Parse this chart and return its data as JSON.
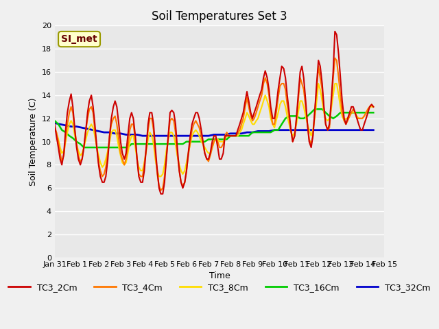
{
  "title": "Soil Temperatures Set 3",
  "xlabel": "Time",
  "ylabel": "Soil Temperature (C)",
  "ylim": [
    0,
    20
  ],
  "yticks": [
    0,
    2,
    4,
    6,
    8,
    10,
    12,
    14,
    16,
    18,
    20
  ],
  "xtick_labels": [
    "Jan 31",
    "Feb 1",
    "Feb 2",
    "Feb 3",
    "Feb 4",
    "Feb 5",
    "Feb 6",
    "Feb 7",
    "Feb 8",
    "Feb 9",
    "Feb 10",
    "Feb 11",
    "Feb 12",
    "Feb 13",
    "Feb 14",
    "Feb 15"
  ],
  "background_color": "#e8e8e8",
  "grid_color": "#ffffff",
  "annotation_text": "SI_met",
  "annotation_bg": "#ffffcc",
  "annotation_border": "#999900",
  "series": {
    "TC3_2Cm": {
      "color": "#cc0000",
      "lw": 1.5,
      "x": [
        0,
        0.08,
        0.17,
        0.25,
        0.33,
        0.42,
        0.5,
        0.58,
        0.67,
        0.75,
        0.83,
        0.92,
        1.0,
        1.08,
        1.17,
        1.25,
        1.33,
        1.42,
        1.5,
        1.58,
        1.67,
        1.75,
        1.83,
        1.92,
        2.0,
        2.08,
        2.17,
        2.25,
        2.33,
        2.42,
        2.5,
        2.58,
        2.67,
        2.75,
        2.83,
        2.92,
        3.0,
        3.08,
        3.17,
        3.25,
        3.33,
        3.42,
        3.5,
        3.58,
        3.67,
        3.75,
        3.83,
        3.92,
        4.0,
        4.08,
        4.17,
        4.25,
        4.33,
        4.42,
        4.5,
        4.58,
        4.67,
        4.75,
        4.83,
        4.92,
        5.0,
        5.08,
        5.17,
        5.25,
        5.33,
        5.42,
        5.5,
        5.58,
        5.67,
        5.75,
        5.83,
        5.92,
        6.0,
        6.08,
        6.17,
        6.25,
        6.33,
        6.42,
        6.5,
        6.58,
        6.67,
        6.75,
        6.83,
        6.92,
        7.0,
        7.08,
        7.17,
        7.25,
        7.33,
        7.42,
        7.5,
        7.58,
        7.67,
        7.75,
        7.83,
        7.92,
        8.0,
        8.08,
        8.17,
        8.25,
        8.33,
        8.42,
        8.5,
        8.58,
        8.67,
        8.75,
        8.83,
        8.92,
        9.0,
        9.08,
        9.17,
        9.25,
        9.33,
        9.42,
        9.5,
        9.58,
        9.67,
        9.75,
        9.83,
        9.92,
        10.0,
        10.08,
        10.17,
        10.25,
        10.33,
        10.42,
        10.5,
        10.58,
        10.67,
        10.75,
        10.83,
        10.92,
        11.0,
        11.08,
        11.17,
        11.25,
        11.33,
        11.42,
        11.5,
        11.58,
        11.67,
        11.75,
        11.83,
        11.92,
        12.0,
        12.08,
        12.17,
        12.25,
        12.33,
        12.42,
        12.5,
        12.58,
        12.67,
        12.75,
        12.83,
        12.92,
        13.0,
        13.08,
        13.17,
        13.25,
        13.33,
        13.42,
        13.5,
        13.58,
        13.67,
        13.75,
        13.83,
        13.92,
        14.0,
        14.08,
        14.17,
        14.25,
        14.33,
        14.42,
        14.5
      ],
      "y": [
        11.5,
        10.5,
        9.5,
        8.5,
        8.0,
        9.0,
        11.0,
        12.5,
        13.5,
        14.1,
        13.0,
        11.0,
        9.5,
        8.5,
        8.0,
        8.5,
        9.5,
        11.0,
        12.5,
        13.5,
        14.0,
        13.0,
        11.5,
        9.5,
        8.0,
        7.0,
        6.5,
        6.5,
        7.0,
        8.5,
        10.5,
        12.0,
        13.0,
        13.5,
        13.0,
        11.5,
        10.0,
        9.0,
        8.5,
        9.0,
        10.5,
        12.0,
        12.5,
        12.0,
        10.5,
        8.5,
        7.0,
        6.5,
        6.5,
        7.5,
        9.5,
        11.5,
        12.5,
        12.5,
        11.5,
        9.5,
        7.5,
        6.0,
        5.5,
        5.5,
        6.5,
        8.5,
        10.5,
        12.5,
        12.7,
        12.5,
        11.5,
        9.5,
        7.5,
        6.5,
        6.0,
        6.5,
        7.5,
        9.0,
        10.5,
        11.5,
        12.0,
        12.5,
        12.5,
        12.0,
        11.0,
        10.0,
        9.0,
        8.5,
        8.5,
        9.0,
        10.0,
        10.5,
        10.5,
        9.5,
        8.5,
        8.5,
        9.0,
        10.5,
        10.5,
        10.5,
        10.5,
        10.5,
        10.5,
        10.5,
        11.0,
        11.5,
        12.0,
        12.5,
        13.5,
        14.3,
        13.5,
        12.5,
        12.0,
        12.5,
        13.0,
        13.5,
        14.0,
        14.5,
        15.5,
        16.1,
        15.5,
        14.5,
        13.0,
        12.0,
        12.0,
        13.0,
        14.5,
        15.5,
        16.5,
        16.3,
        15.5,
        14.0,
        12.5,
        11.0,
        10.0,
        10.5,
        12.0,
        14.0,
        16.0,
        16.5,
        15.5,
        13.5,
        11.5,
        10.0,
        9.5,
        10.5,
        12.5,
        15.0,
        17.0,
        16.5,
        15.0,
        13.0,
        11.5,
        11.0,
        11.5,
        13.5,
        16.0,
        19.5,
        19.2,
        17.5,
        15.5,
        13.5,
        12.0,
        11.5,
        12.0,
        12.5,
        13.0,
        13.0,
        12.5,
        12.0,
        11.5,
        11.0,
        11.0,
        11.5,
        12.0,
        12.5,
        13.0,
        13.2,
        13.0
      ]
    },
    "TC3_4Cm": {
      "color": "#ff7700",
      "lw": 1.5,
      "x": [
        0,
        0.08,
        0.17,
        0.25,
        0.33,
        0.42,
        0.5,
        0.58,
        0.67,
        0.75,
        0.83,
        0.92,
        1.0,
        1.08,
        1.17,
        1.25,
        1.33,
        1.42,
        1.5,
        1.58,
        1.67,
        1.75,
        1.83,
        1.92,
        2.0,
        2.08,
        2.17,
        2.25,
        2.33,
        2.42,
        2.5,
        2.58,
        2.67,
        2.75,
        2.83,
        2.92,
        3.0,
        3.08,
        3.17,
        3.25,
        3.33,
        3.42,
        3.5,
        3.58,
        3.67,
        3.75,
        3.83,
        3.92,
        4.0,
        4.08,
        4.17,
        4.25,
        4.33,
        4.42,
        4.5,
        4.58,
        4.67,
        4.75,
        4.83,
        4.92,
        5.0,
        5.08,
        5.17,
        5.25,
        5.33,
        5.42,
        5.5,
        5.58,
        5.67,
        5.75,
        5.83,
        5.92,
        6.0,
        6.08,
        6.17,
        6.25,
        6.33,
        6.42,
        6.5,
        6.58,
        6.67,
        6.75,
        6.83,
        6.92,
        7.0,
        7.08,
        7.17,
        7.25,
        7.33,
        7.42,
        7.5,
        7.58,
        7.67,
        7.75,
        7.83,
        7.92,
        8.0,
        8.08,
        8.17,
        8.25,
        8.33,
        8.42,
        8.5,
        8.58,
        8.67,
        8.75,
        8.83,
        8.92,
        9.0,
        9.08,
        9.17,
        9.25,
        9.33,
        9.42,
        9.5,
        9.58,
        9.67,
        9.75,
        9.83,
        9.92,
        10.0,
        10.08,
        10.17,
        10.25,
        10.33,
        10.42,
        10.5,
        10.58,
        10.67,
        10.75,
        10.83,
        10.92,
        11.0,
        11.08,
        11.17,
        11.25,
        11.33,
        11.42,
        11.5,
        11.58,
        11.67,
        11.75,
        11.83,
        11.92,
        12.0,
        12.08,
        12.17,
        12.25,
        12.33,
        12.42,
        12.5,
        12.58,
        12.67,
        12.75,
        12.83,
        12.92,
        13.0,
        13.08,
        13.17,
        13.25,
        13.33,
        13.42,
        13.5,
        13.58,
        13.67,
        13.75,
        13.83,
        13.92,
        14.0,
        14.08,
        14.17,
        14.25,
        14.33,
        14.42,
        14.5
      ],
      "y": [
        11.3,
        10.8,
        10.0,
        9.0,
        8.3,
        8.8,
        10.3,
        11.5,
        12.5,
        13.0,
        12.5,
        11.0,
        9.8,
        8.8,
        8.3,
        8.5,
        9.5,
        11.0,
        12.0,
        12.8,
        13.0,
        12.5,
        11.0,
        9.5,
        8.2,
        7.5,
        7.0,
        7.2,
        7.8,
        9.0,
        10.5,
        11.5,
        12.0,
        12.2,
        11.5,
        10.2,
        9.0,
        8.5,
        8.0,
        8.5,
        9.5,
        11.0,
        11.5,
        11.5,
        10.2,
        8.5,
        7.2,
        7.0,
        7.0,
        8.0,
        9.5,
        11.0,
        12.0,
        12.0,
        11.0,
        9.0,
        7.2,
        6.2,
        5.8,
        6.0,
        7.0,
        8.5,
        10.5,
        11.8,
        12.0,
        11.8,
        10.8,
        9.0,
        7.5,
        6.5,
        6.2,
        6.5,
        7.5,
        8.8,
        10.0,
        11.0,
        11.5,
        11.8,
        11.5,
        11.2,
        10.5,
        9.8,
        9.0,
        8.5,
        8.3,
        8.8,
        9.5,
        10.0,
        10.3,
        10.0,
        9.5,
        9.5,
        9.8,
        10.5,
        10.8,
        10.5,
        10.5,
        10.5,
        10.5,
        10.5,
        10.8,
        11.0,
        11.5,
        12.0,
        13.0,
        13.8,
        13.0,
        12.2,
        11.8,
        12.0,
        12.5,
        13.0,
        13.5,
        14.0,
        15.0,
        15.5,
        15.0,
        14.0,
        12.5,
        11.5,
        11.5,
        12.5,
        13.8,
        14.8,
        15.0,
        15.0,
        14.5,
        13.2,
        12.0,
        11.0,
        10.0,
        10.5,
        12.0,
        13.5,
        15.5,
        15.0,
        14.5,
        13.0,
        11.5,
        10.2,
        9.8,
        10.5,
        12.5,
        14.5,
        16.5,
        15.5,
        14.5,
        12.8,
        11.5,
        11.0,
        11.2,
        13.0,
        15.5,
        17.2,
        17.0,
        15.5,
        14.0,
        12.5,
        11.8,
        11.5,
        11.8,
        12.2,
        12.5,
        12.8,
        12.5,
        12.0,
        12.0,
        12.0,
        12.0,
        12.2,
        12.5,
        12.8,
        13.0,
        13.2,
        13.0
      ]
    },
    "TC3_8Cm": {
      "color": "#ffdd00",
      "lw": 1.5,
      "x": [
        0,
        0.08,
        0.17,
        0.25,
        0.33,
        0.42,
        0.5,
        0.58,
        0.67,
        0.75,
        0.83,
        0.92,
        1.0,
        1.08,
        1.17,
        1.25,
        1.33,
        1.42,
        1.5,
        1.58,
        1.67,
        1.75,
        1.83,
        1.92,
        2.0,
        2.08,
        2.17,
        2.25,
        2.33,
        2.42,
        2.5,
        2.58,
        2.67,
        2.75,
        2.83,
        2.92,
        3.0,
        3.08,
        3.17,
        3.25,
        3.33,
        3.42,
        3.5,
        3.58,
        3.67,
        3.75,
        3.83,
        3.92,
        4.0,
        4.08,
        4.17,
        4.25,
        4.33,
        4.42,
        4.5,
        4.58,
        4.67,
        4.75,
        4.83,
        4.92,
        5.0,
        5.08,
        5.17,
        5.25,
        5.33,
        5.42,
        5.5,
        5.58,
        5.67,
        5.75,
        5.83,
        5.92,
        6.0,
        6.08,
        6.17,
        6.25,
        6.33,
        6.42,
        6.5,
        6.58,
        6.67,
        6.75,
        6.83,
        6.92,
        7.0,
        7.08,
        7.17,
        7.25,
        7.33,
        7.42,
        7.5,
        7.58,
        7.67,
        7.75,
        7.83,
        7.92,
        8.0,
        8.08,
        8.17,
        8.25,
        8.33,
        8.42,
        8.5,
        8.58,
        8.67,
        8.75,
        8.83,
        8.92,
        9.0,
        9.08,
        9.17,
        9.25,
        9.33,
        9.42,
        9.5,
        9.58,
        9.67,
        9.75,
        9.83,
        9.92,
        10.0,
        10.08,
        10.17,
        10.25,
        10.33,
        10.42,
        10.5,
        10.58,
        10.67,
        10.75,
        10.83,
        10.92,
        11.0,
        11.08,
        11.17,
        11.25,
        11.33,
        11.42,
        11.5,
        11.58,
        11.67,
        11.75,
        11.83,
        11.92,
        12.0,
        12.08,
        12.17,
        12.25,
        12.33,
        12.42,
        12.5,
        12.58,
        12.67,
        12.75,
        12.83,
        12.92,
        13.0,
        13.08,
        13.17,
        13.25,
        13.33,
        13.42,
        13.5,
        13.58,
        13.67,
        13.75,
        13.83,
        13.92,
        14.0,
        14.08,
        14.17,
        14.25,
        14.33,
        14.42,
        14.5
      ],
      "y": [
        11.0,
        10.8,
        10.2,
        9.5,
        9.0,
        9.2,
        10.0,
        10.8,
        11.5,
        11.8,
        11.5,
        10.5,
        9.8,
        9.2,
        8.8,
        9.0,
        9.5,
        10.2,
        10.8,
        11.2,
        11.5,
        11.2,
        10.5,
        9.5,
        8.8,
        8.2,
        7.8,
        8.0,
        8.5,
        9.2,
        10.0,
        10.8,
        11.0,
        11.0,
        10.5,
        9.5,
        8.8,
        8.2,
        8.0,
        8.2,
        9.0,
        10.0,
        10.5,
        10.5,
        9.5,
        8.5,
        7.8,
        7.5,
        7.5,
        8.2,
        9.2,
        10.2,
        10.8,
        10.5,
        9.8,
        8.5,
        7.5,
        7.0,
        7.0,
        7.2,
        8.0,
        9.2,
        10.2,
        10.8,
        10.8,
        10.5,
        9.8,
        8.8,
        8.0,
        7.5,
        7.2,
        7.5,
        8.2,
        9.0,
        9.8,
        10.5,
        10.8,
        11.0,
        10.8,
        10.5,
        10.0,
        9.8,
        9.5,
        9.2,
        9.0,
        9.0,
        9.5,
        10.0,
        10.2,
        10.2,
        10.0,
        10.0,
        10.0,
        10.2,
        10.5,
        10.5,
        10.5,
        10.5,
        10.5,
        10.5,
        10.5,
        10.8,
        11.0,
        11.5,
        12.0,
        12.5,
        12.2,
        11.8,
        11.5,
        11.5,
        11.8,
        12.0,
        12.5,
        13.0,
        13.5,
        14.0,
        13.5,
        13.0,
        12.0,
        11.5,
        11.2,
        11.8,
        12.5,
        13.2,
        13.5,
        13.5,
        13.0,
        12.2,
        11.5,
        10.8,
        10.5,
        10.8,
        11.5,
        12.5,
        13.5,
        13.5,
        13.0,
        12.2,
        11.5,
        11.0,
        10.5,
        11.0,
        12.0,
        13.5,
        15.0,
        14.5,
        13.5,
        12.5,
        12.0,
        11.8,
        12.0,
        12.8,
        14.0,
        15.0,
        15.0,
        14.0,
        13.0,
        12.2,
        11.8,
        12.0,
        12.0,
        12.2,
        12.5,
        12.5,
        12.5,
        12.2,
        12.0,
        12.0,
        12.0,
        12.2,
        12.5,
        12.8,
        13.0,
        13.0,
        13.0
      ]
    },
    "TC3_16Cm": {
      "color": "#00cc00",
      "lw": 1.8,
      "x": [
        0,
        0.17,
        0.33,
        0.5,
        0.67,
        0.83,
        1.0,
        1.17,
        1.33,
        1.5,
        1.67,
        1.83,
        2.0,
        2.17,
        2.33,
        2.5,
        2.67,
        2.83,
        3.0,
        3.17,
        3.33,
        3.5,
        3.67,
        3.83,
        4.0,
        4.17,
        4.33,
        4.5,
        4.67,
        4.83,
        5.0,
        5.17,
        5.33,
        5.5,
        5.67,
        5.83,
        6.0,
        6.17,
        6.33,
        6.5,
        6.67,
        6.83,
        7.0,
        7.17,
        7.33,
        7.5,
        7.67,
        7.83,
        8.0,
        8.17,
        8.33,
        8.5,
        8.67,
        8.83,
        9.0,
        9.17,
        9.33,
        9.5,
        9.67,
        9.83,
        10.0,
        10.17,
        10.33,
        10.5,
        10.67,
        10.83,
        11.0,
        11.17,
        11.33,
        11.5,
        11.67,
        11.83,
        12.0,
        12.17,
        12.33,
        12.5,
        12.67,
        12.83,
        13.0,
        13.17,
        13.33,
        13.5,
        13.67,
        13.83,
        14.0,
        14.17,
        14.33,
        14.5
      ],
      "y": [
        11.8,
        11.5,
        11.0,
        10.8,
        10.5,
        10.3,
        10.0,
        9.8,
        9.5,
        9.5,
        9.5,
        9.5,
        9.5,
        9.5,
        9.5,
        9.5,
        9.5,
        9.5,
        9.5,
        9.5,
        9.5,
        9.8,
        9.8,
        9.8,
        9.8,
        9.8,
        9.8,
        9.8,
        9.8,
        9.8,
        9.8,
        9.8,
        9.8,
        9.8,
        9.8,
        9.8,
        10.0,
        10.0,
        10.0,
        10.0,
        10.0,
        10.0,
        10.2,
        10.2,
        10.2,
        10.2,
        10.2,
        10.2,
        10.5,
        10.5,
        10.5,
        10.5,
        10.5,
        10.5,
        10.8,
        10.8,
        10.8,
        10.8,
        10.8,
        10.8,
        11.0,
        11.0,
        11.5,
        12.0,
        12.2,
        12.2,
        12.2,
        12.0,
        12.0,
        12.2,
        12.5,
        12.8,
        12.8,
        12.8,
        12.5,
        12.2,
        12.0,
        12.2,
        12.5,
        12.5,
        12.5,
        12.5,
        12.5,
        12.5,
        12.5,
        12.5,
        12.5,
        12.5
      ]
    },
    "TC3_32Cm": {
      "color": "#0000cc",
      "lw": 2.0,
      "x": [
        0,
        0.25,
        0.5,
        0.75,
        1.0,
        1.25,
        1.5,
        1.75,
        2.0,
        2.25,
        2.5,
        2.75,
        3.0,
        3.25,
        3.5,
        3.75,
        4.0,
        4.25,
        4.5,
        4.75,
        5.0,
        5.25,
        5.5,
        5.75,
        6.0,
        6.25,
        6.5,
        6.75,
        7.0,
        7.25,
        7.5,
        7.75,
        8.0,
        8.25,
        8.5,
        8.75,
        9.0,
        9.25,
        9.5,
        9.75,
        10.0,
        10.25,
        10.5,
        10.75,
        11.0,
        11.25,
        11.5,
        11.75,
        12.0,
        12.25,
        12.5,
        12.75,
        13.0,
        13.25,
        13.5,
        13.75,
        14.0,
        14.25,
        14.5
      ],
      "y": [
        11.6,
        11.5,
        11.4,
        11.3,
        11.3,
        11.2,
        11.1,
        11.0,
        10.9,
        10.8,
        10.8,
        10.7,
        10.7,
        10.6,
        10.6,
        10.6,
        10.5,
        10.5,
        10.5,
        10.5,
        10.5,
        10.5,
        10.5,
        10.5,
        10.5,
        10.5,
        10.5,
        10.5,
        10.5,
        10.6,
        10.6,
        10.6,
        10.7,
        10.7,
        10.7,
        10.8,
        10.8,
        10.9,
        10.9,
        10.9,
        11.0,
        11.0,
        11.0,
        11.0,
        11.0,
        11.0,
        11.0,
        11.0,
        11.0,
        11.0,
        11.0,
        11.0,
        11.0,
        11.0,
        11.0,
        11.0,
        11.0,
        11.0,
        11.0
      ]
    }
  }
}
